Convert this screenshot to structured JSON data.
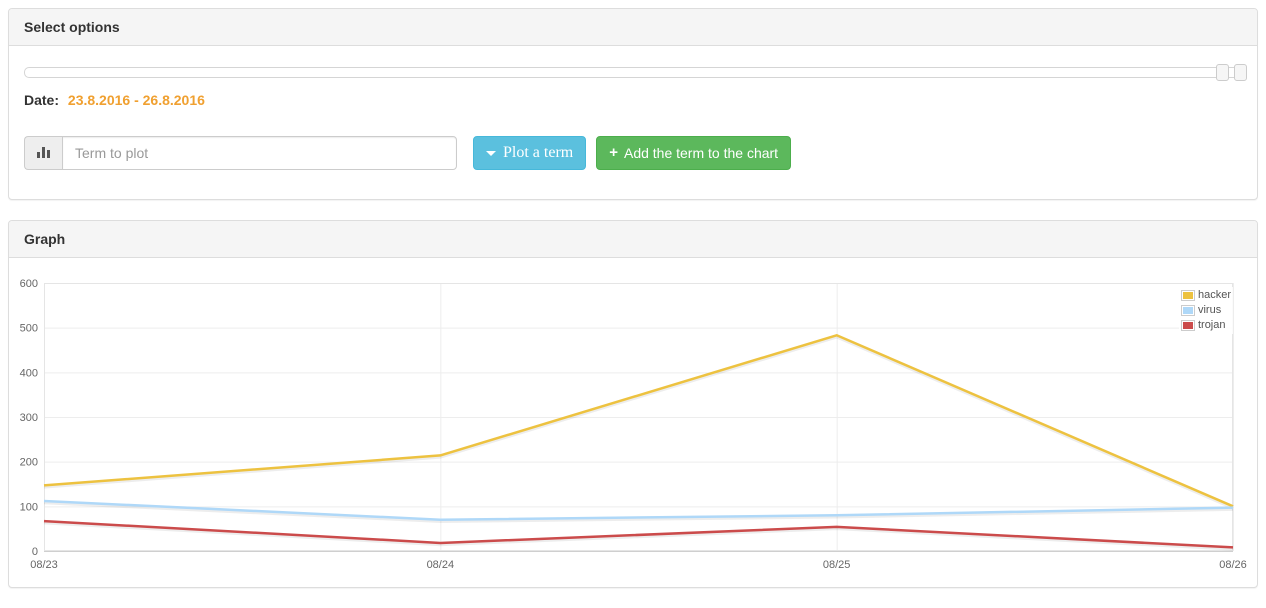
{
  "panels": {
    "select_options": {
      "title": "Select options",
      "date_label": "Date:",
      "date_value": "23.8.2016 - 26.8.2016",
      "date_color": "#f0a030",
      "term_input": {
        "value": "",
        "placeholder": "Term to plot"
      },
      "addon_icon": "bar-chart-icon",
      "plot_button": {
        "label": "Plot a term",
        "color": "#5bc0de"
      },
      "add_button": {
        "label": "Add the term to the chart",
        "plus": "+",
        "color": "#5cb85c"
      }
    },
    "graph": {
      "title": "Graph"
    }
  },
  "chart_data": {
    "type": "line",
    "x": [
      "08/23",
      "08/24",
      "08/25",
      "08/26"
    ],
    "series": [
      {
        "name": "hacker",
        "color": "#edc240",
        "values": [
          147,
          214,
          483,
          100
        ]
      },
      {
        "name": "virus",
        "color": "#afd8f8",
        "values": [
          112,
          70,
          80,
          97
        ]
      },
      {
        "name": "trojan",
        "color": "#cb4b4b",
        "values": [
          67,
          18,
          54,
          8
        ]
      }
    ],
    "title": "",
    "xlabel": "",
    "ylabel": "",
    "ylim": [
      0,
      600
    ],
    "yticks": [
      0,
      100,
      200,
      300,
      400,
      500,
      600
    ],
    "grid": true,
    "legend_position": "top-right",
    "grid_color": "#ededed",
    "axis_text_color": "#666666"
  }
}
